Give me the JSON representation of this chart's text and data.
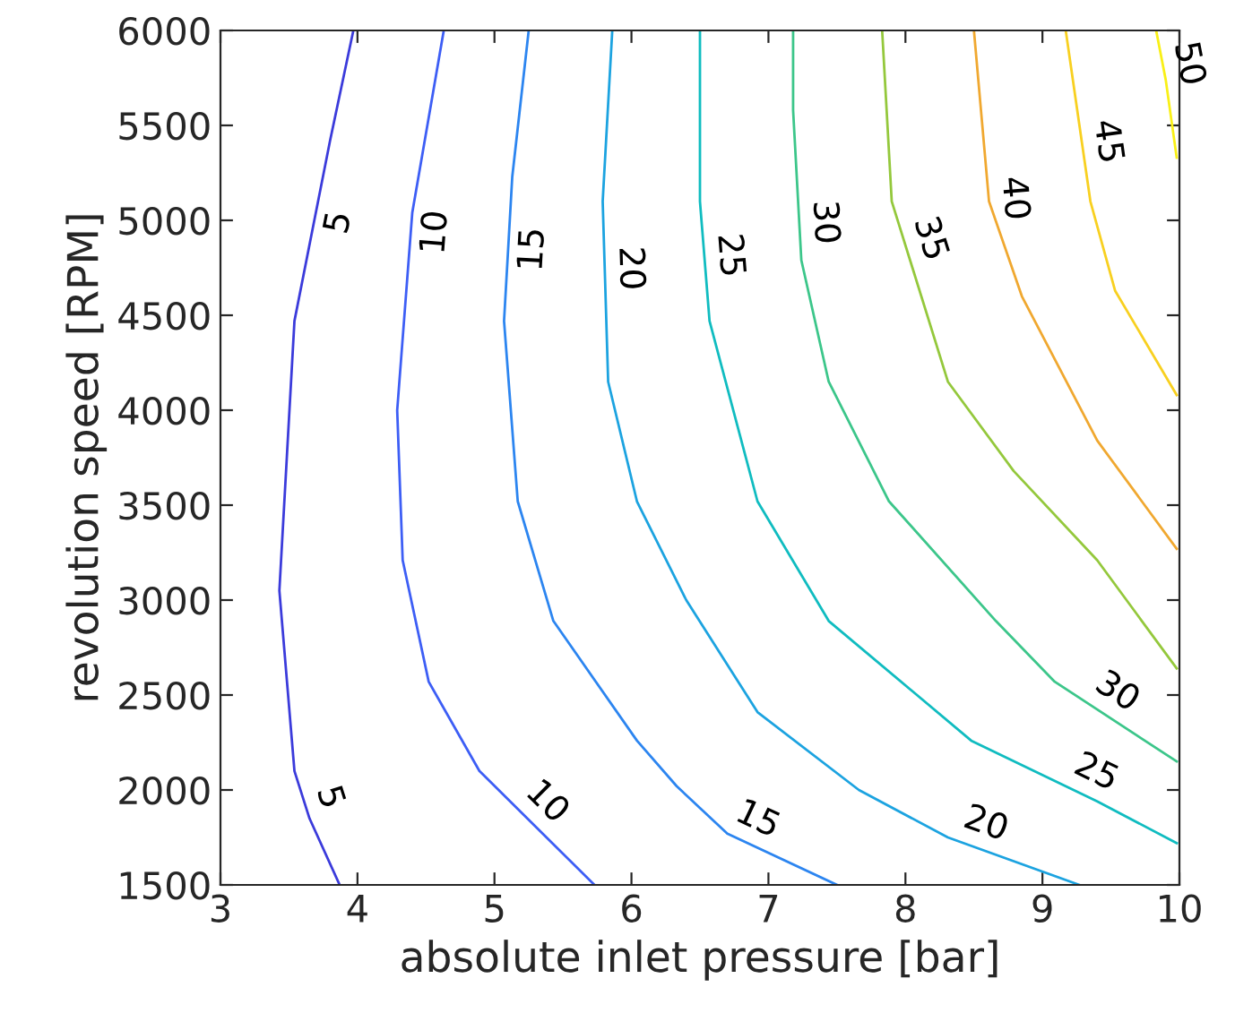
{
  "chart_data": {
    "type": "line",
    "xlabel": "absolute inlet pressure [bar]",
    "ylabel": "revolution speed [RPM]",
    "xlim": [
      3,
      10
    ],
    "ylim": [
      1500,
      6000
    ],
    "xticks": [
      3,
      4,
      5,
      6,
      7,
      8,
      9,
      10
    ],
    "yticks": [
      1500,
      2000,
      2500,
      3000,
      3500,
      4000,
      4500,
      5000,
      5500,
      6000
    ],
    "grid": false,
    "legend": false,
    "marker": "none",
    "line_style": "solid",
    "series": [
      {
        "name": "5",
        "color": "#3b3bdb",
        "x": [
          3.97,
          3.8,
          3.54,
          3.43,
          3.54,
          3.65,
          3.87
        ],
        "values": [
          6000,
          5420,
          4470,
          3050,
          2100,
          1850,
          1500
        ]
      },
      {
        "name": "10",
        "color": "#3d5ef5",
        "x": [
          4.63,
          4.4,
          4.29,
          4.33,
          4.52,
          4.89,
          5.73
        ],
        "values": [
          6000,
          5040,
          4000,
          3210,
          2570,
          2100,
          1500
        ]
      },
      {
        "name": "15",
        "color": "#2c85f0",
        "x": [
          5.25,
          5.13,
          5.07,
          5.17,
          5.43,
          6.04,
          6.33,
          6.7,
          7.5
        ],
        "values": [
          6000,
          5230,
          4470,
          3520,
          2890,
          2260,
          2020,
          1770,
          1500
        ]
      },
      {
        "name": "20",
        "color": "#1ca3e0",
        "x": [
          5.86,
          5.79,
          5.83,
          6.04,
          6.4,
          6.92,
          7.66,
          8.31,
          9.27
        ],
        "values": [
          6000,
          5100,
          4150,
          3520,
          3000,
          2410,
          2000,
          1750,
          1500
        ]
      },
      {
        "name": "25",
        "color": "#10bcc0",
        "x": [
          6.5,
          6.5,
          6.57,
          6.92,
          7.44,
          8.48,
          9.4,
          9.98
        ],
        "values": [
          6000,
          5100,
          4470,
          3520,
          2890,
          2260,
          1940,
          1720
        ]
      },
      {
        "name": "30",
        "color": "#3cc68a",
        "x": [
          7.18,
          7.18,
          7.24,
          7.44,
          7.88,
          8.66,
          9.09,
          9.98
        ],
        "values": [
          6000,
          5580,
          4790,
          4150,
          3520,
          2890,
          2570,
          2150
        ]
      },
      {
        "name": "35",
        "color": "#94c83c",
        "x": [
          7.83,
          7.9,
          8.31,
          8.79,
          9.4,
          9.98
        ],
        "values": [
          6000,
          5100,
          4150,
          3680,
          3210,
          2640
        ]
      },
      {
        "name": "40",
        "color": "#f0a830",
        "x": [
          8.5,
          8.61,
          8.85,
          9.4,
          9.98
        ],
        "values": [
          6000,
          5100,
          4600,
          3840,
          3270
        ]
      },
      {
        "name": "45",
        "color": "#f8d020",
        "x": [
          9.17,
          9.35,
          9.53,
          9.98
        ],
        "values": [
          6000,
          5100,
          4630,
          4080
        ]
      },
      {
        "name": "50",
        "color": "#f9f016",
        "x": [
          9.83,
          9.9,
          9.98
        ],
        "values": [
          6000,
          5740,
          5330
        ]
      }
    ]
  }
}
